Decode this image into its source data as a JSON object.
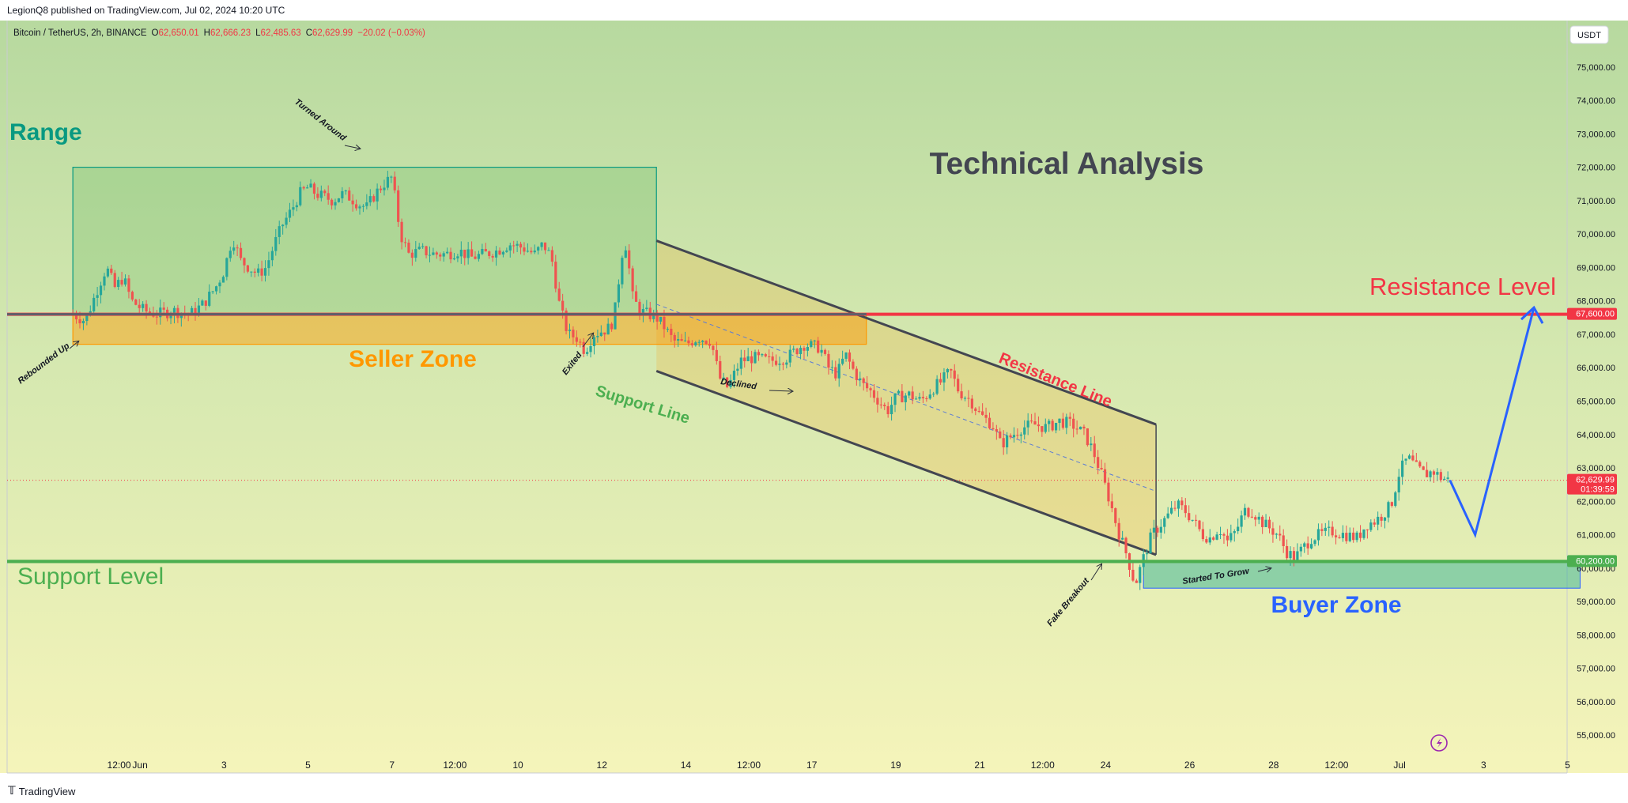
{
  "header": {
    "published": "LegionQ8 published on TradingView.com, Jul 02, 2024 10:20 UTC"
  },
  "legend": {
    "symbol": "Bitcoin / TetherUS, 2h, BINANCE",
    "o_label": "O",
    "o_value": "62,650.01",
    "h_label": "H",
    "h_value": "62,666.23",
    "l_label": "L",
    "l_value": "62,485.63",
    "c_label": "C",
    "c_value": "62,629.99",
    "change": "−20.02 (−0.03%)"
  },
  "currency_button": "USDT",
  "footer": {
    "brand": "TradingView"
  },
  "colors": {
    "candle_up": "#26a69a",
    "candle_down": "#ef5350",
    "resistance": "#f23645",
    "support": "#4caf50",
    "projection": "#2962ff",
    "channel": "#434651",
    "range_box": "#089981",
    "seller_zone": "#ff9800",
    "buyer_zone": "#22ab94"
  },
  "chart_data": {
    "type": "candlestick",
    "timeframe": "2h",
    "ylim": [
      54000,
      76000
    ],
    "y_ticks": [
      55000,
      56000,
      57000,
      58000,
      59000,
      60000,
      61000,
      62000,
      63000,
      64000,
      65000,
      66000,
      67000,
      68000,
      69000,
      70000,
      71000,
      72000,
      73000,
      74000,
      75000
    ],
    "y_tick_labels": [
      "55,000.00",
      "56,000.00",
      "57,000.00",
      "58,000.00",
      "59,000.00",
      "60,000.00",
      "61,000.00",
      "62,000.00",
      "63,000.00",
      "64,000.00",
      "65,000.00",
      "66,000.00",
      "67,000.00",
      "68,000.00",
      "69,000.00",
      "70,000.00",
      "71,000.00",
      "72,000.00",
      "73,000.00",
      "74,000.00",
      "75,000.00"
    ],
    "x_ticks": [
      {
        "t": 0.5,
        "label": "12:00"
      },
      {
        "t": 1,
        "label": "Jun"
      },
      {
        "t": 3,
        "label": "3"
      },
      {
        "t": 5,
        "label": "5"
      },
      {
        "t": 7,
        "label": "7"
      },
      {
        "t": 8.5,
        "label": "12:00"
      },
      {
        "t": 10,
        "label": "10"
      },
      {
        "t": 12,
        "label": "12"
      },
      {
        "t": 14,
        "label": "14"
      },
      {
        "t": 15.5,
        "label": "12:00"
      },
      {
        "t": 17,
        "label": "17"
      },
      {
        "t": 19,
        "label": "19"
      },
      {
        "t": 21,
        "label": "21"
      },
      {
        "t": 22.5,
        "label": "12:00"
      },
      {
        "t": 24,
        "label": "24"
      },
      {
        "t": 26,
        "label": "26"
      },
      {
        "t": 28,
        "label": "28"
      },
      {
        "t": 29.5,
        "label": "12:00"
      },
      {
        "t": 31,
        "label": "Jul"
      },
      {
        "t": 33,
        "label": "3"
      },
      {
        "t": 35,
        "label": "5"
      }
    ],
    "x_unit": "days since May 31",
    "price_path": [
      [
        -0.6,
        67600
      ],
      [
        -0.3,
        67400
      ],
      [
        0.0,
        68400
      ],
      [
        0.2,
        69000
      ],
      [
        0.4,
        68400
      ],
      [
        0.6,
        68700
      ],
      [
        0.8,
        68000
      ],
      [
        1.1,
        67700
      ],
      [
        1.4,
        67600
      ],
      [
        1.8,
        67700
      ],
      [
        2.2,
        67600
      ],
      [
        2.5,
        67900
      ],
      [
        2.8,
        68400
      ],
      [
        3.0,
        68900
      ],
      [
        3.2,
        69900
      ],
      [
        3.4,
        69200
      ],
      [
        3.6,
        69000
      ],
      [
        3.8,
        68800
      ],
      [
        4.0,
        69000
      ],
      [
        4.2,
        69700
      ],
      [
        4.4,
        70300
      ],
      [
        4.6,
        70700
      ],
      [
        4.8,
        71200
      ],
      [
        5.0,
        71400
      ],
      [
        5.2,
        71200
      ],
      [
        5.4,
        71100
      ],
      [
        5.6,
        71000
      ],
      [
        5.8,
        71200
      ],
      [
        6.0,
        71100
      ],
      [
        6.2,
        70900
      ],
      [
        6.4,
        70800
      ],
      [
        6.6,
        71200
      ],
      [
        6.8,
        71500
      ],
      [
        7.0,
        71700
      ],
      [
        7.2,
        70000
      ],
      [
        7.4,
        69400
      ],
      [
        7.7,
        69500
      ],
      [
        8.0,
        69400
      ],
      [
        8.3,
        69400
      ],
      [
        8.6,
        69500
      ],
      [
        8.9,
        69300
      ],
      [
        9.2,
        69400
      ],
      [
        9.5,
        69500
      ],
      [
        9.8,
        69700
      ],
      [
        10.1,
        69600
      ],
      [
        10.4,
        69400
      ],
      [
        10.6,
        69700
      ],
      [
        10.8,
        69300
      ],
      [
        11.0,
        67800
      ],
      [
        11.2,
        67000
      ],
      [
        11.4,
        66900
      ],
      [
        11.6,
        66500
      ],
      [
        11.8,
        67000
      ],
      [
        12.0,
        67100
      ],
      [
        12.2,
        67200
      ],
      [
        12.3,
        67600
      ],
      [
        12.5,
        69600
      ],
      [
        12.6,
        69700
      ],
      [
        12.7,
        68200
      ],
      [
        12.9,
        67700
      ],
      [
        13.1,
        67600
      ],
      [
        13.3,
        67500
      ],
      [
        13.5,
        67200
      ],
      [
        13.7,
        66800
      ],
      [
        14.0,
        66700
      ],
      [
        14.3,
        66900
      ],
      [
        14.6,
        66800
      ],
      [
        14.8,
        65700
      ],
      [
        15.0,
        65400
      ],
      [
        15.3,
        66200
      ],
      [
        15.6,
        66300
      ],
      [
        16.0,
        66200
      ],
      [
        16.4,
        66300
      ],
      [
        16.8,
        66700
      ],
      [
        17.2,
        66600
      ],
      [
        17.4,
        66000
      ],
      [
        17.6,
        65800
      ],
      [
        17.8,
        66400
      ],
      [
        18.0,
        65900
      ],
      [
        18.2,
        65500
      ],
      [
        18.4,
        65300
      ],
      [
        18.6,
        65000
      ],
      [
        18.8,
        64700
      ],
      [
        19.0,
        65100
      ],
      [
        19.3,
        65200
      ],
      [
        19.6,
        65000
      ],
      [
        19.9,
        65400
      ],
      [
        20.1,
        65600
      ],
      [
        20.3,
        65900
      ],
      [
        20.5,
        65300
      ],
      [
        20.8,
        65000
      ],
      [
        21.0,
        64600
      ],
      [
        21.3,
        64300
      ],
      [
        21.5,
        63700
      ],
      [
        21.8,
        64000
      ],
      [
        22.0,
        64200
      ],
      [
        22.3,
        64300
      ],
      [
        22.6,
        64200
      ],
      [
        22.9,
        64400
      ],
      [
        23.2,
        64300
      ],
      [
        23.5,
        64000
      ],
      [
        23.7,
        63500
      ],
      [
        23.9,
        62800
      ],
      [
        24.1,
        62000
      ],
      [
        24.3,
        61100
      ],
      [
        24.5,
        60400
      ],
      [
        24.7,
        59500
      ],
      [
        24.9,
        60300
      ],
      [
        25.1,
        61000
      ],
      [
        25.3,
        61300
      ],
      [
        25.5,
        61600
      ],
      [
        25.7,
        61900
      ],
      [
        25.9,
        61700
      ],
      [
        26.1,
        61400
      ],
      [
        26.3,
        61000
      ],
      [
        26.5,
        60900
      ],
      [
        26.7,
        61200
      ],
      [
        26.9,
        60800
      ],
      [
        27.1,
        61100
      ],
      [
        27.3,
        61700
      ],
      [
        27.5,
        61700
      ],
      [
        27.7,
        61400
      ],
      [
        27.9,
        61200
      ],
      [
        28.1,
        61000
      ],
      [
        28.3,
        60500
      ],
      [
        28.5,
        60300
      ],
      [
        28.7,
        60600
      ],
      [
        28.9,
        60900
      ],
      [
        29.1,
        61000
      ],
      [
        29.4,
        61100
      ],
      [
        29.7,
        61000
      ],
      [
        30.0,
        60900
      ],
      [
        30.2,
        61300
      ],
      [
        30.4,
        61400
      ],
      [
        30.6,
        61600
      ],
      [
        30.8,
        61900
      ],
      [
        31.0,
        62900
      ],
      [
        31.2,
        63300
      ],
      [
        31.4,
        63000
      ],
      [
        31.6,
        62800
      ],
      [
        31.8,
        62900
      ],
      [
        32.0,
        62700
      ],
      [
        32.2,
        62629.99
      ]
    ],
    "horizontal_levels": [
      {
        "name": "Resistance Level",
        "price": 67600,
        "price_label": "67,600.00"
      },
      {
        "name": "Support Level",
        "price": 60200,
        "price_label": "60,200.00"
      }
    ],
    "last_price": {
      "price": 62629.99,
      "label": "62,629.99",
      "countdown": "01:39:59"
    },
    "zones": {
      "range": {
        "t_start": -0.6,
        "t_end": 13.3,
        "price_low": 67600,
        "price_high": 72000
      },
      "seller": {
        "t_start": -0.6,
        "t_end": 18.3,
        "price_low": 66700,
        "price_high": 67600
      },
      "buyer": {
        "t_start": 24.9,
        "t_end": 35.3,
        "price_low": 59400,
        "price_high": 60200
      }
    },
    "channel": {
      "upper": [
        [
          13.3,
          69800
        ],
        [
          25.2,
          64300
        ]
      ],
      "lower": [
        [
          13.3,
          65900
        ],
        [
          25.2,
          60400
        ]
      ],
      "mid": [
        [
          13.3,
          67900
        ],
        [
          25.2,
          62300
        ]
      ]
    },
    "projection": [
      [
        32.2,
        62629.99
      ],
      [
        32.8,
        61000
      ],
      [
        34.2,
        67800
      ]
    ],
    "annotations": {
      "title": "Technical Analysis",
      "range": "Range",
      "seller_zone": "Seller Zone",
      "buyer_zone": "Buyer Zone",
      "support_level": "Support Level",
      "resistance_level": "Resistance Level",
      "support_line": "Support Line",
      "resistance_line": "Resistance Line",
      "turned_around": "Turned Around",
      "rebounded_up": "Rebounded Up",
      "exited": "Exited",
      "declined": "Declined",
      "fake_breakout": "Fake Breakout",
      "started_to_grow": "Started To Grow"
    }
  }
}
